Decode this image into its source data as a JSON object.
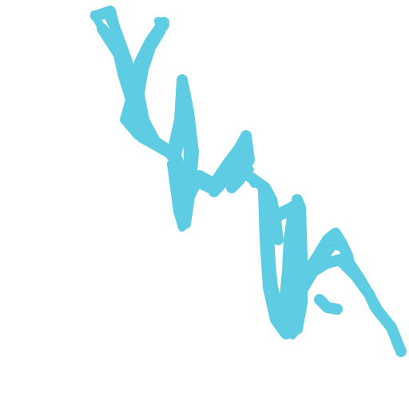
{
  "canvas": {
    "background": "#ffffff"
  },
  "scribble": {
    "color": "#5ecde3",
    "description_icon": "freehand-scribble"
  }
}
